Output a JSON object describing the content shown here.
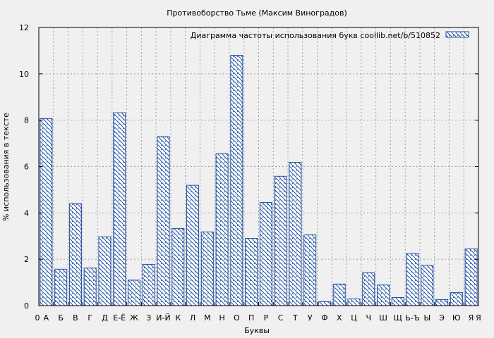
{
  "chart_data": {
    "type": "bar",
    "title": "Противоборство Тьме (Максим Виноградов)",
    "xlabel": "Буквы",
    "ylabel": "% использования в тексте",
    "ylim": [
      0,
      12
    ],
    "yticks": [
      "0",
      "2",
      "4",
      "6",
      "8",
      "10",
      "12"
    ],
    "x_start_label": "0",
    "x_end_label": "Я",
    "categories": [
      "А",
      "Б",
      "В",
      "Г",
      "Д",
      "Е-Ё",
      "Ж",
      "З",
      "И-Й",
      "К",
      "Л",
      "М",
      "Н",
      "О",
      "П",
      "Р",
      "С",
      "Т",
      "У",
      "Ф",
      "Х",
      "Ц",
      "Ч",
      "Ш",
      "Щ",
      "Ь-Ъ",
      "Ы",
      "Э",
      "Ю",
      "Я"
    ],
    "series": [
      {
        "name": "Диаграмма частоты использования букв  coollib.net/b/510852",
        "values": [
          8.07,
          1.57,
          4.4,
          1.62,
          2.97,
          8.32,
          1.1,
          1.78,
          7.29,
          3.33,
          5.19,
          3.18,
          6.55,
          10.8,
          2.9,
          4.45,
          5.58,
          6.18,
          3.05,
          0.17,
          0.93,
          0.29,
          1.42,
          0.89,
          0.35,
          2.25,
          1.74,
          0.26,
          0.56,
          2.45
        ]
      }
    ],
    "grid": true,
    "legend_position": "top-right",
    "colors": {
      "bar_stroke": "#1f4fa0",
      "background": "#f0f0f0"
    }
  }
}
